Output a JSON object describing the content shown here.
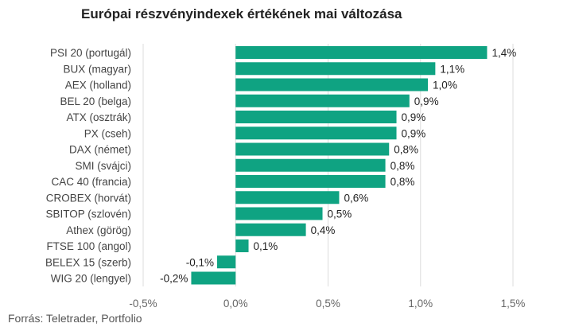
{
  "chart_data": {
    "type": "bar",
    "orientation": "horizontal",
    "title": "Európai részvényindexek értékének mai változása",
    "source": "Forrás: Teletrader, Portfolio",
    "categories": [
      "PSI 20 (portugál)",
      "BUX (magyar)",
      "AEX (holland)",
      "BEL 20 (belga)",
      "ATX (osztrák)",
      "PX (cseh)",
      "DAX (német)",
      "SMI (svájci)",
      "CAC 40 (francia)",
      "CROBEX (horvát)",
      "SBITOP (szlovén)",
      "Athex (görög)",
      "FTSE 100 (angol)",
      "BELEX 15 (szerb)",
      "WIG 20 (lengyel)"
    ],
    "values": [
      1.36,
      1.08,
      1.04,
      0.94,
      0.87,
      0.87,
      0.83,
      0.81,
      0.81,
      0.56,
      0.47,
      0.38,
      0.07,
      -0.1,
      -0.24
    ],
    "value_labels": [
      "1,4%",
      "1,1%",
      "1,0%",
      "0,9%",
      "0,9%",
      "0,9%",
      "0,8%",
      "0,8%",
      "0,8%",
      "0,6%",
      "0,5%",
      "0,4%",
      "0,1%",
      "-0,1%",
      "-0,2%"
    ],
    "xlim": [
      -0.5,
      1.5
    ],
    "xticks": [
      -0.5,
      0,
      0.5,
      1.0,
      1.5
    ],
    "xtick_labels": [
      "-0,5%",
      "0,0%",
      "0,5%",
      "1,0%",
      "1,5%"
    ],
    "grid": true,
    "bar_color": "#0fa382",
    "grid_color": "#dddddd"
  }
}
